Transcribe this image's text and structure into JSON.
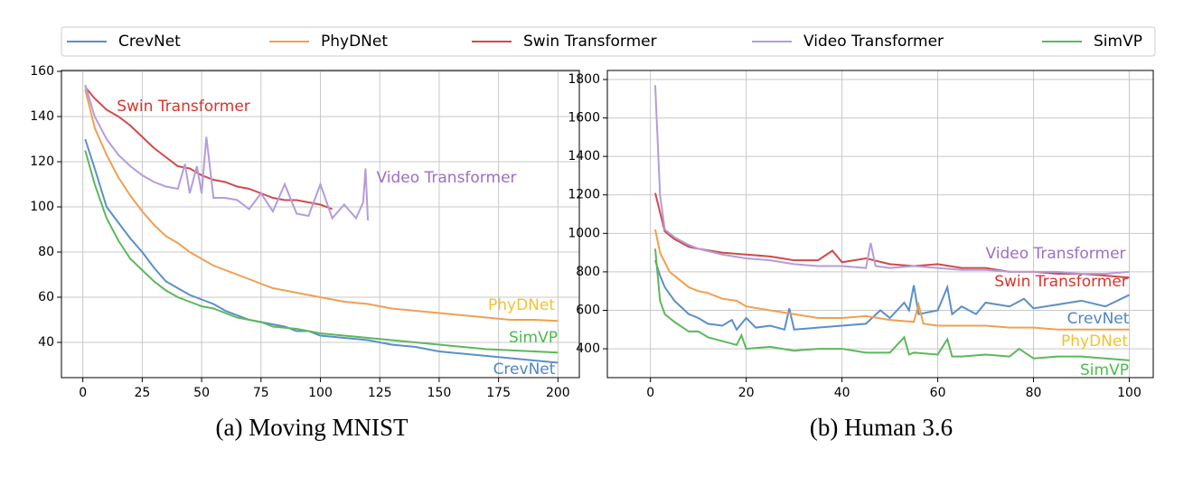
{
  "chart_data": [
    {
      "type": "line",
      "title": "(a) Moving MNIST",
      "xlim": [
        -9,
        209
      ],
      "ylim": [
        24.4,
        160.4
      ],
      "xticks": [
        0,
        25,
        50,
        75,
        100,
        125,
        150,
        175,
        200
      ],
      "yticks": [
        40,
        60,
        80,
        100,
        120,
        140,
        160
      ],
      "grid": true,
      "series": [
        {
          "name": "CrevNet",
          "color": "#5b8fc7",
          "x": [
            1,
            5,
            10,
            15,
            20,
            25,
            30,
            35,
            40,
            45,
            50,
            55,
            60,
            65,
            70,
            75,
            80,
            85,
            90,
            95,
            100,
            110,
            120,
            130,
            140,
            150,
            160,
            170,
            180,
            190,
            200
          ],
          "values": [
            130,
            117,
            100,
            93,
            86,
            80,
            73,
            67,
            64,
            61,
            59,
            57,
            54,
            52,
            50,
            49,
            48,
            47,
            45,
            45,
            43,
            42,
            41,
            39,
            38,
            36,
            35,
            34,
            33,
            32,
            31
          ]
        },
        {
          "name": "PhyDNet",
          "color": "#f0a050",
          "x": [
            1,
            5,
            10,
            15,
            20,
            25,
            30,
            35,
            40,
            45,
            50,
            55,
            60,
            65,
            70,
            75,
            80,
            90,
            100,
            110,
            120,
            130,
            140,
            150,
            160,
            170,
            180,
            190,
            200
          ],
          "values": [
            152,
            135,
            123,
            113,
            105,
            98,
            92,
            87,
            84,
            80,
            77,
            74,
            72,
            70,
            68,
            66,
            64,
            62,
            60,
            58,
            57,
            55,
            54,
            53,
            52,
            51,
            50,
            50,
            49.5
          ]
        },
        {
          "name": "Swin Transformer",
          "color": "#d14a4a",
          "x": [
            1,
            5,
            10,
            15,
            20,
            25,
            30,
            35,
            40,
            45,
            50,
            55,
            60,
            65,
            70,
            75,
            80,
            85,
            90,
            95,
            100,
            105
          ],
          "values": [
            153,
            148,
            143,
            140,
            136,
            131,
            126,
            122,
            118,
            117,
            114,
            112,
            111,
            109,
            108,
            106,
            104,
            103,
            103,
            102,
            101,
            99
          ]
        },
        {
          "name": "Video Transformer",
          "color": "#b39ddb",
          "x": [
            1,
            5,
            10,
            15,
            20,
            25,
            30,
            35,
            40,
            43,
            45,
            48,
            50,
            52,
            55,
            60,
            65,
            70,
            75,
            80,
            85,
            90,
            95,
            100,
            105,
            110,
            115,
            118,
            119,
            120
          ],
          "values": [
            154,
            140,
            130,
            123,
            118,
            114,
            111,
            109,
            108,
            119,
            106,
            118,
            106,
            131,
            104,
            104,
            103,
            99,
            106,
            98,
            110,
            97,
            96,
            110,
            95,
            101,
            95,
            102,
            117,
            94
          ]
        },
        {
          "name": "SimVP",
          "color": "#5cb85c",
          "x": [
            1,
            5,
            10,
            15,
            20,
            25,
            30,
            35,
            40,
            45,
            50,
            55,
            60,
            65,
            70,
            75,
            80,
            90,
            100,
            110,
            120,
            130,
            140,
            150,
            160,
            170,
            180,
            190,
            200
          ],
          "values": [
            125,
            110,
            95,
            85,
            77,
            72,
            67,
            63,
            60,
            58,
            56,
            55,
            53,
            51,
            50,
            49,
            47,
            46,
            44,
            43,
            42,
            41,
            40,
            39,
            38,
            37,
            36.5,
            36,
            35.5
          ]
        }
      ],
      "annotations": [
        {
          "text": "Swin Transformer",
          "color": "#d9342b"
        },
        {
          "text": "Video Transformer",
          "color": "#9b6fc4"
        },
        {
          "text": "PhyDNet",
          "color": "#f2c230"
        },
        {
          "text": "SimVP",
          "color": "#4cbb4c"
        },
        {
          "text": "CrevNet",
          "color": "#4f86c6"
        }
      ]
    },
    {
      "type": "line",
      "title": "(b) Human 3.6",
      "xlim": [
        -9,
        105
      ],
      "ylim": [
        250,
        1847
      ],
      "xticks": [
        0,
        20,
        40,
        60,
        80,
        100
      ],
      "yticks": [
        400,
        600,
        800,
        1000,
        1200,
        1400,
        1600,
        1800
      ],
      "grid": true,
      "series": [
        {
          "name": "CrevNet",
          "color": "#5b8fc7",
          "x": [
            1,
            2,
            3,
            5,
            8,
            10,
            12,
            15,
            17,
            18,
            20,
            22,
            25,
            28,
            29,
            30,
            35,
            40,
            45,
            48,
            50,
            53,
            54,
            55,
            56,
            60,
            62,
            63,
            65,
            68,
            70,
            75,
            78,
            80,
            85,
            90,
            95,
            100
          ],
          "values": [
            860,
            780,
            720,
            650,
            580,
            560,
            530,
            520,
            550,
            500,
            560,
            510,
            520,
            500,
            610,
            500,
            510,
            520,
            530,
            600,
            560,
            640,
            600,
            730,
            580,
            600,
            720,
            580,
            620,
            580,
            640,
            620,
            660,
            610,
            630,
            650,
            620,
            680
          ]
        },
        {
          "name": "PhyDNet",
          "color": "#f0a050",
          "x": [
            1,
            2,
            4,
            6,
            8,
            10,
            12,
            15,
            18,
            20,
            25,
            30,
            35,
            40,
            45,
            50,
            55,
            56,
            57,
            60,
            65,
            70,
            75,
            80,
            85,
            90,
            95,
            100
          ],
          "values": [
            1020,
            900,
            800,
            760,
            720,
            700,
            690,
            660,
            650,
            620,
            600,
            580,
            560,
            560,
            570,
            550,
            540,
            630,
            530,
            520,
            520,
            520,
            510,
            510,
            500,
            500,
            500,
            500
          ]
        },
        {
          "name": "Swin Transformer",
          "color": "#d14a4a",
          "x": [
            1,
            3,
            5,
            8,
            10,
            15,
            20,
            25,
            30,
            35,
            38,
            40,
            45,
            50,
            55,
            60,
            65,
            70,
            75,
            80,
            85,
            90,
            95,
            100
          ],
          "values": [
            1210,
            1010,
            970,
            930,
            920,
            900,
            890,
            880,
            860,
            860,
            910,
            850,
            870,
            840,
            830,
            840,
            820,
            820,
            800,
            800,
            790,
            790,
            780,
            770
          ]
        },
        {
          "name": "Video Transformer",
          "color": "#b39ddb",
          "x": [
            1,
            2,
            3,
            5,
            8,
            10,
            15,
            20,
            25,
            30,
            35,
            40,
            45,
            46,
            47,
            50,
            55,
            60,
            65,
            70,
            75,
            80,
            85,
            90,
            95,
            100
          ],
          "values": [
            1770,
            1200,
            1020,
            980,
            940,
            920,
            890,
            870,
            860,
            840,
            830,
            830,
            820,
            950,
            830,
            820,
            830,
            820,
            810,
            810,
            800,
            800,
            800,
            790,
            790,
            800
          ]
        },
        {
          "name": "SimVP",
          "color": "#5cb85c",
          "x": [
            1,
            2,
            3,
            5,
            8,
            10,
            12,
            15,
            18,
            19,
            20,
            25,
            30,
            35,
            40,
            45,
            50,
            53,
            54,
            55,
            60,
            62,
            63,
            65,
            70,
            75,
            77,
            80,
            85,
            90,
            95,
            100
          ],
          "values": [
            920,
            650,
            580,
            540,
            490,
            490,
            460,
            440,
            420,
            470,
            400,
            410,
            390,
            400,
            400,
            380,
            380,
            460,
            370,
            380,
            370,
            450,
            360,
            360,
            370,
            360,
            400,
            350,
            360,
            360,
            350,
            340
          ]
        }
      ],
      "annotations": [
        {
          "text": "Video Transformer",
          "color": "#9b6fc4"
        },
        {
          "text": "Swin Transformer",
          "color": "#d9342b"
        },
        {
          "text": "CrevNet",
          "color": "#4f86c6"
        },
        {
          "text": "PhyDNet",
          "color": "#f2c230"
        },
        {
          "text": "SimVP",
          "color": "#4cbb4c"
        }
      ]
    }
  ]
}
